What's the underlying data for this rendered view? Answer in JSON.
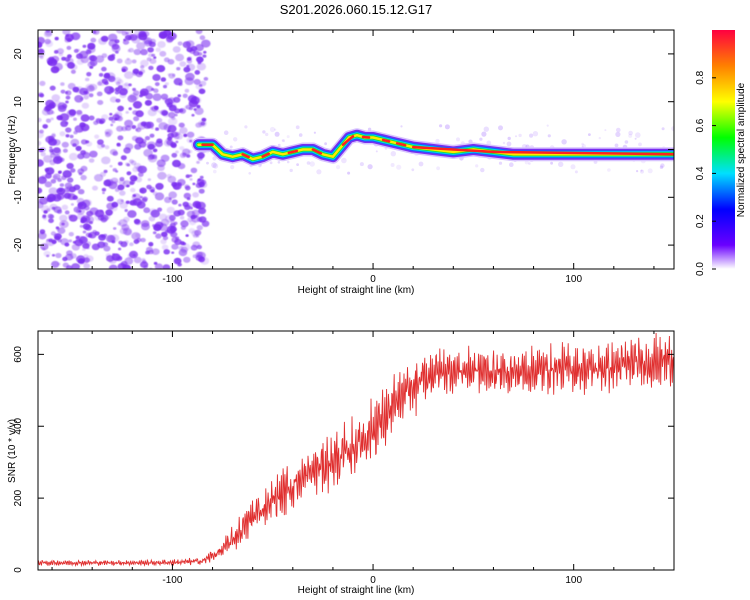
{
  "title": "S201.2026.060.15.12.G17",
  "colors": {
    "snr_line": "#e03030",
    "scatter": "#7a2df0",
    "frame": "#000000"
  },
  "chart_data": [
    {
      "type": "heatmap",
      "name": "spectrogram",
      "xlabel": "Height of straight line (km)",
      "ylabel": "Frequency (Hz)",
      "xlim": [
        -167,
        150
      ],
      "ylim": [
        -25,
        25
      ],
      "xticks": [
        -100,
        0,
        100
      ],
      "xtick_labels": [
        "-100",
        "0",
        "100"
      ],
      "yticks": [
        -20,
        -10,
        0,
        10,
        20
      ],
      "ytick_labels": [
        "-20",
        "-10",
        "0",
        "10",
        "20"
      ],
      "noise_region_x": [
        -167,
        -85
      ],
      "ridge": {
        "x": [
          -87,
          -80,
          -75,
          -70,
          -65,
          -60,
          -55,
          -50,
          -45,
          -40,
          -35,
          -30,
          -25,
          -20,
          -15,
          -12,
          -8,
          -4,
          0,
          5,
          10,
          15,
          20,
          30,
          40,
          50,
          60,
          70,
          80,
          90,
          100,
          110,
          120,
          130,
          140,
          150
        ],
        "y": [
          1.0,
          1.0,
          -1.0,
          -1.5,
          -1.0,
          -2.0,
          -1.5,
          -0.5,
          -1.0,
          -0.5,
          0,
          0,
          -1.0,
          -1.5,
          1.0,
          2.5,
          3.0,
          2.5,
          2.5,
          2.0,
          1.5,
          1.0,
          0.5,
          0,
          -0.5,
          0,
          -0.5,
          -1.0,
          -1.0,
          -1.0,
          -1.0,
          -1.0,
          -1.0,
          -1.0,
          -1.0,
          -1.0
        ]
      },
      "colorbar": {
        "label": "Normalized spectral amplitude",
        "range": [
          0,
          1
        ],
        "ticks": [
          0.0,
          0.2,
          0.4,
          0.6,
          0.8
        ],
        "tick_labels": [
          "0.0",
          "0.2",
          "0.4",
          "0.6",
          "0.8"
        ]
      }
    },
    {
      "type": "line",
      "name": "snr",
      "xlabel": "Height of straight line (km)",
      "ylabel": "SNR (10 * v/v)",
      "xlim": [
        -167,
        150
      ],
      "ylim": [
        0,
        665
      ],
      "xticks": [
        -100,
        0,
        100
      ],
      "xtick_labels": [
        "-100",
        "0",
        "100"
      ],
      "yticks": [
        0,
        200,
        400,
        600
      ],
      "ytick_labels": [
        "0",
        "200",
        "400",
        "600"
      ],
      "series": [
        {
          "name": "SNR",
          "x": [
            -167,
            -150,
            -130,
            -110,
            -95,
            -85,
            -75,
            -70,
            -65,
            -60,
            -55,
            -50,
            -45,
            -40,
            -35,
            -30,
            -25,
            -20,
            -15,
            -10,
            -5,
            0,
            5,
            10,
            15,
            20,
            25,
            30,
            40,
            50,
            60,
            70,
            80,
            90,
            100,
            110,
            120,
            130,
            140,
            150
          ],
          "values": [
            20,
            20,
            20,
            20,
            22,
            25,
            55,
            85,
            115,
            150,
            170,
            195,
            215,
            235,
            255,
            275,
            290,
            305,
            315,
            340,
            365,
            390,
            420,
            450,
            480,
            505,
            530,
            550,
            555,
            555,
            550,
            550,
            555,
            560,
            560,
            560,
            565,
            575,
            580,
            585
          ],
          "noise_amplitude": [
            8,
            8,
            8,
            8,
            10,
            12,
            30,
            40,
            50,
            60,
            60,
            65,
            70,
            80,
            80,
            80,
            85,
            90,
            95,
            95,
            95,
            100,
            100,
            100,
            100,
            90,
            80,
            75,
            70,
            70,
            70,
            70,
            70,
            75,
            75,
            75,
            75,
            80,
            80,
            80
          ]
        }
      ]
    }
  ]
}
